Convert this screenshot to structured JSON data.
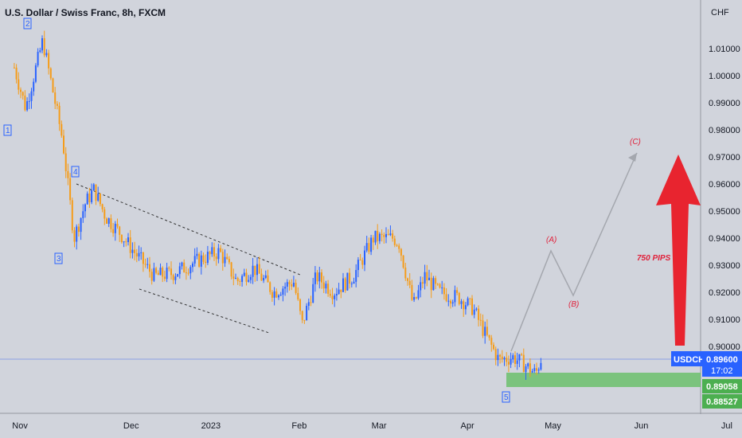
{
  "header": {
    "title": "U.S. Dollar / Swiss Franc, 8h, FXCM"
  },
  "axis": {
    "currency": "CHF",
    "y_ticks": [
      "1.01000",
      "1.00000",
      "0.99000",
      "0.98000",
      "0.97000",
      "0.96000",
      "0.95000",
      "0.94000",
      "0.93000",
      "0.92000",
      "0.91000",
      "0.90000"
    ],
    "x_ticks": [
      "Nov",
      "Dec",
      "2023",
      "Feb",
      "Mar",
      "Apr",
      "May",
      "Jun",
      "Jul"
    ]
  },
  "badges": {
    "symbol": "USDCHF",
    "last_price": "0.89600",
    "countdown": "17:02",
    "zone_top": "0.89058",
    "zone_bottom": "0.88527"
  },
  "wave_labels": [
    "1",
    "2",
    "3",
    "4",
    "5"
  ],
  "abc_labels": [
    "(A)",
    "(B)",
    "(C)"
  ],
  "annotation": "750 PIPS",
  "colors": {
    "up": "#2962ff",
    "down": "#f59c1a",
    "zone": "#6cbf6c",
    "arrow": "#e8242f",
    "badge_blue": "#2962ff",
    "badge_green": "#4caf50",
    "background": "#d1d4dc"
  },
  "chart_data": {
    "type": "line",
    "title": "U.S. Dollar / Swiss Franc, 8h, FXCM",
    "ylabel": "CHF",
    "ylim": [
      0.88,
      1.015
    ],
    "series": [
      {
        "values": [
          [
            "2022-10-24",
            1.003
          ],
          [
            "2022-10-28",
            0.988
          ],
          [
            "2022-11-03",
            1.013
          ],
          [
            "2022-11-10",
            0.976
          ],
          [
            "2022-11-14",
            0.94
          ],
          [
            "2022-11-18",
            0.953
          ],
          [
            "2022-11-21",
            0.958
          ],
          [
            "2022-11-25",
            0.948
          ],
          [
            "2022-11-30",
            0.942
          ],
          [
            "2022-12-05",
            0.935
          ],
          [
            "2022-12-12",
            0.926
          ],
          [
            "2022-12-19",
            0.927
          ],
          [
            "2022-12-28",
            0.932
          ],
          [
            "2023-01-04",
            0.935
          ],
          [
            "2023-01-10",
            0.924
          ],
          [
            "2023-01-16",
            0.929
          ],
          [
            "2023-01-23",
            0.92
          ],
          [
            "2023-01-30",
            0.924
          ],
          [
            "2023-02-02",
            0.908
          ],
          [
            "2023-02-07",
            0.926
          ],
          [
            "2023-02-13",
            0.92
          ],
          [
            "2023-02-20",
            0.926
          ],
          [
            "2023-02-27",
            0.94
          ],
          [
            "2023-03-06",
            0.94
          ],
          [
            "2023-03-08",
            0.938
          ],
          [
            "2023-03-13",
            0.915
          ],
          [
            "2023-03-17",
            0.926
          ],
          [
            "2023-03-22",
            0.92
          ],
          [
            "2023-03-29",
            0.918
          ],
          [
            "2023-04-03",
            0.914
          ],
          [
            "2023-04-07",
            0.905
          ],
          [
            "2023-04-12",
            0.895
          ],
          [
            "2023-04-17",
            0.896
          ],
          [
            "2023-04-20",
            0.894
          ],
          [
            "2023-04-25",
            0.89
          ],
          [
            "2023-04-27",
            0.896
          ]
        ]
      }
    ]
  }
}
